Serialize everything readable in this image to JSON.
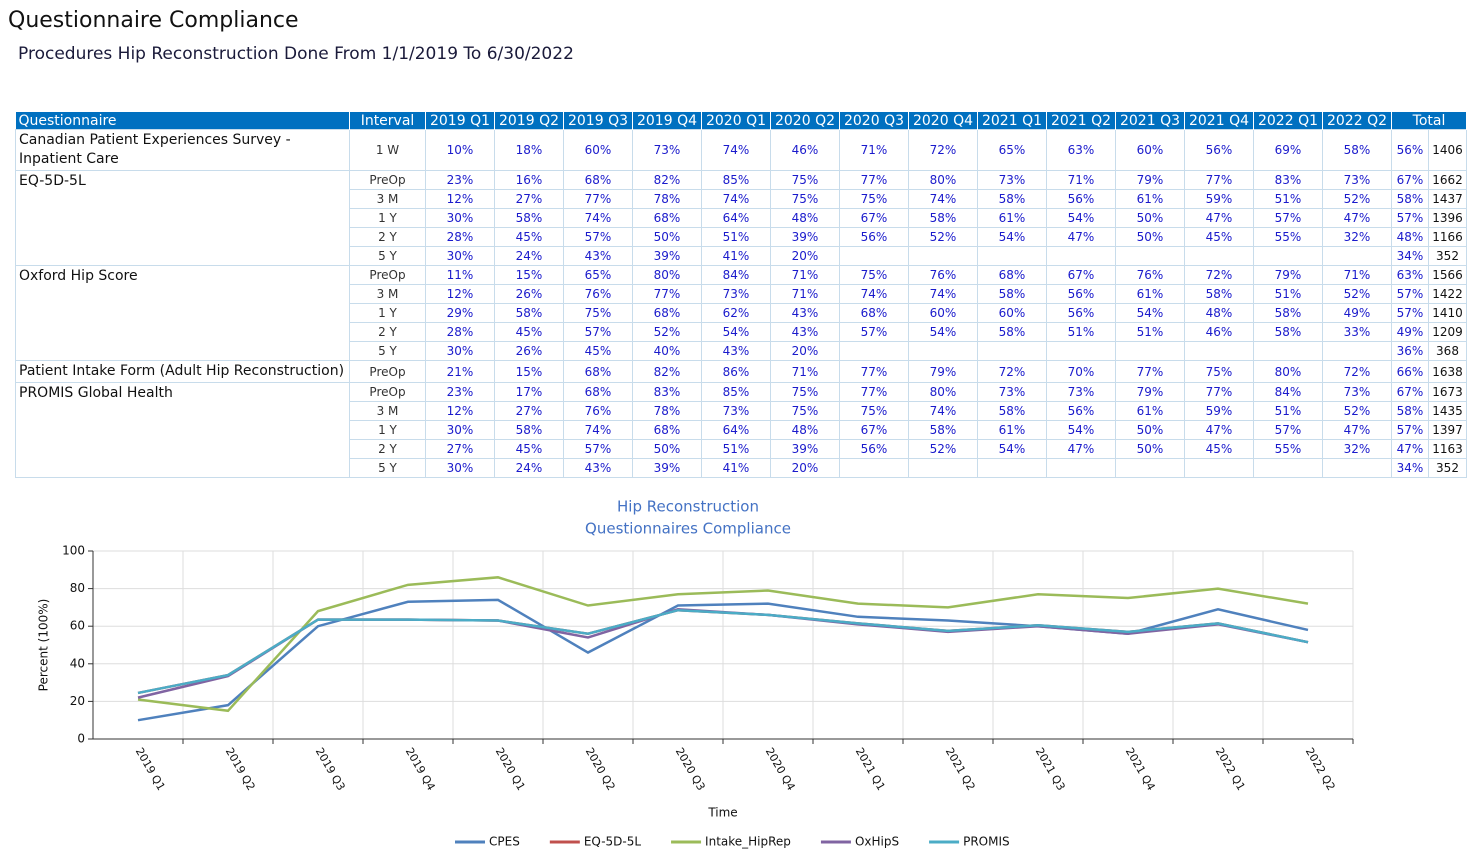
{
  "header": {
    "title": "Questionnaire Compliance",
    "subtitle": "Procedures Hip Reconstruction Done From 1/1/2019 To 6/30/2022"
  },
  "table": {
    "columns": [
      "Questionnaire",
      "Interval",
      "2019 Q1",
      "2019 Q2",
      "2019 Q3",
      "2019 Q4",
      "2020 Q1",
      "2020 Q2",
      "2020 Q3",
      "2020 Q4",
      "2021 Q1",
      "2021 Q2",
      "2021 Q3",
      "2021 Q4",
      "2022 Q1",
      "2022 Q2",
      "Total"
    ],
    "groups": [
      {
        "name": "Canadian Patient Experiences Survey - Inpatient Care",
        "rows": [
          {
            "interval": "1 W",
            "values": [
              "10%",
              "18%",
              "60%",
              "73%",
              "74%",
              "46%",
              "71%",
              "72%",
              "65%",
              "63%",
              "60%",
              "56%",
              "69%",
              "58%"
            ],
            "total_pct": "56%",
            "total_n": "1406"
          }
        ]
      },
      {
        "name": "EQ-5D-5L",
        "rows": [
          {
            "interval": "PreOp",
            "values": [
              "23%",
              "16%",
              "68%",
              "82%",
              "85%",
              "75%",
              "77%",
              "80%",
              "73%",
              "71%",
              "79%",
              "77%",
              "83%",
              "73%"
            ],
            "total_pct": "67%",
            "total_n": "1662"
          },
          {
            "interval": "3 M",
            "values": [
              "12%",
              "27%",
              "77%",
              "78%",
              "74%",
              "75%",
              "75%",
              "74%",
              "58%",
              "56%",
              "61%",
              "59%",
              "51%",
              "52%"
            ],
            "total_pct": "58%",
            "total_n": "1437"
          },
          {
            "interval": "1 Y",
            "values": [
              "30%",
              "58%",
              "74%",
              "68%",
              "64%",
              "48%",
              "67%",
              "58%",
              "61%",
              "54%",
              "50%",
              "47%",
              "57%",
              "47%"
            ],
            "total_pct": "57%",
            "total_n": "1396"
          },
          {
            "interval": "2 Y",
            "values": [
              "28%",
              "45%",
              "57%",
              "50%",
              "51%",
              "39%",
              "56%",
              "52%",
              "54%",
              "47%",
              "50%",
              "45%",
              "55%",
              "32%"
            ],
            "total_pct": "48%",
            "total_n": "1166"
          },
          {
            "interval": "5 Y",
            "values": [
              "30%",
              "24%",
              "43%",
              "39%",
              "41%",
              "20%",
              null,
              null,
              null,
              null,
              null,
              null,
              null,
              null
            ],
            "total_pct": "34%",
            "total_n": "352"
          }
        ]
      },
      {
        "name": "Oxford Hip Score",
        "rows": [
          {
            "interval": "PreOp",
            "values": [
              "11%",
              "15%",
              "65%",
              "80%",
              "84%",
              "71%",
              "75%",
              "76%",
              "68%",
              "67%",
              "76%",
              "72%",
              "79%",
              "71%"
            ],
            "total_pct": "63%",
            "total_n": "1566"
          },
          {
            "interval": "3 M",
            "values": [
              "12%",
              "26%",
              "76%",
              "77%",
              "73%",
              "71%",
              "74%",
              "74%",
              "58%",
              "56%",
              "61%",
              "58%",
              "51%",
              "52%"
            ],
            "total_pct": "57%",
            "total_n": "1422"
          },
          {
            "interval": "1 Y",
            "values": [
              "29%",
              "58%",
              "75%",
              "68%",
              "62%",
              "43%",
              "68%",
              "60%",
              "60%",
              "56%",
              "54%",
              "48%",
              "58%",
              "49%"
            ],
            "total_pct": "57%",
            "total_n": "1410"
          },
          {
            "interval": "2 Y",
            "values": [
              "28%",
              "45%",
              "57%",
              "52%",
              "54%",
              "43%",
              "57%",
              "54%",
              "58%",
              "51%",
              "51%",
              "46%",
              "58%",
              "33%"
            ],
            "total_pct": "49%",
            "total_n": "1209"
          },
          {
            "interval": "5 Y",
            "values": [
              "30%",
              "26%",
              "45%",
              "40%",
              "43%",
              "20%",
              null,
              null,
              null,
              null,
              null,
              null,
              null,
              null
            ],
            "total_pct": "36%",
            "total_n": "368"
          }
        ]
      },
      {
        "name": "Patient Intake Form (Adult Hip Reconstruction)",
        "rows": [
          {
            "interval": "PreOp",
            "values": [
              "21%",
              "15%",
              "68%",
              "82%",
              "86%",
              "71%",
              "77%",
              "79%",
              "72%",
              "70%",
              "77%",
              "75%",
              "80%",
              "72%"
            ],
            "total_pct": "66%",
            "total_n": "1638"
          }
        ]
      },
      {
        "name": "PROMIS Global Health",
        "rows": [
          {
            "interval": "PreOp",
            "values": [
              "23%",
              "17%",
              "68%",
              "83%",
              "85%",
              "75%",
              "77%",
              "80%",
              "73%",
              "73%",
              "79%",
              "77%",
              "84%",
              "73%"
            ],
            "total_pct": "67%",
            "total_n": "1673"
          },
          {
            "interval": "3 M",
            "values": [
              "12%",
              "27%",
              "76%",
              "78%",
              "73%",
              "75%",
              "75%",
              "74%",
              "58%",
              "56%",
              "61%",
              "59%",
              "51%",
              "52%"
            ],
            "total_pct": "58%",
            "total_n": "1435"
          },
          {
            "interval": "1 Y",
            "values": [
              "30%",
              "58%",
              "74%",
              "68%",
              "64%",
              "48%",
              "67%",
              "58%",
              "61%",
              "54%",
              "50%",
              "47%",
              "57%",
              "47%"
            ],
            "total_pct": "57%",
            "total_n": "1397"
          },
          {
            "interval": "2 Y",
            "values": [
              "27%",
              "45%",
              "57%",
              "50%",
              "51%",
              "39%",
              "56%",
              "52%",
              "54%",
              "47%",
              "50%",
              "45%",
              "55%",
              "32%"
            ],
            "total_pct": "47%",
            "total_n": "1163"
          },
          {
            "interval": "5 Y",
            "values": [
              "30%",
              "24%",
              "43%",
              "39%",
              "41%",
              "20%",
              null,
              null,
              null,
              null,
              null,
              null,
              null,
              null
            ],
            "total_pct": "34%",
            "total_n": "352"
          }
        ]
      }
    ]
  },
  "chart_data": {
    "type": "line",
    "title": [
      "Hip Reconstruction",
      "Questionnaires Compliance"
    ],
    "y_label": "Percent (100%)",
    "x_label": "Time",
    "categories": [
      "2019 Q1",
      "2019 Q2",
      "2019 Q3",
      "2019 Q4",
      "2020 Q1",
      "2020 Q2",
      "2020 Q3",
      "2020 Q4",
      "2021 Q1",
      "2021 Q2",
      "2021 Q3",
      "2021 Q4",
      "2022 Q1",
      "2022 Q2"
    ],
    "ylim": [
      0,
      100
    ],
    "yticks": [
      0,
      20,
      40,
      60,
      80,
      100
    ],
    "grid": true,
    "series": [
      {
        "name": "CPES",
        "color": "#4f81bd",
        "values": [
          10,
          18,
          60,
          73,
          74,
          46,
          71,
          72,
          65,
          63,
          60,
          56,
          69,
          58
        ]
      },
      {
        "name": "EQ-5D-5L",
        "color": "#c0504d",
        "values": [
          24.5,
          34,
          63.5,
          63.5,
          63,
          56,
          68.5,
          66,
          61.5,
          57.5,
          60.5,
          57,
          61.5,
          51.5
        ]
      },
      {
        "name": "Intake_HipRep",
        "color": "#9bbb59",
        "values": [
          21,
          15,
          68,
          82,
          86,
          71,
          77,
          79,
          72,
          70,
          77,
          75,
          80,
          72
        ]
      },
      {
        "name": "OxHipS",
        "color": "#8064a2",
        "values": [
          22,
          33.5,
          63.5,
          63.5,
          63,
          54,
          69,
          66,
          61,
          57,
          60,
          56,
          61,
          51.5
        ]
      },
      {
        "name": "PROMIS",
        "color": "#4bacc6",
        "values": [
          24.5,
          34,
          63.5,
          63.5,
          63,
          56,
          68.5,
          66,
          61.5,
          57.5,
          60.5,
          57,
          61.5,
          51.5
        ]
      }
    ]
  }
}
